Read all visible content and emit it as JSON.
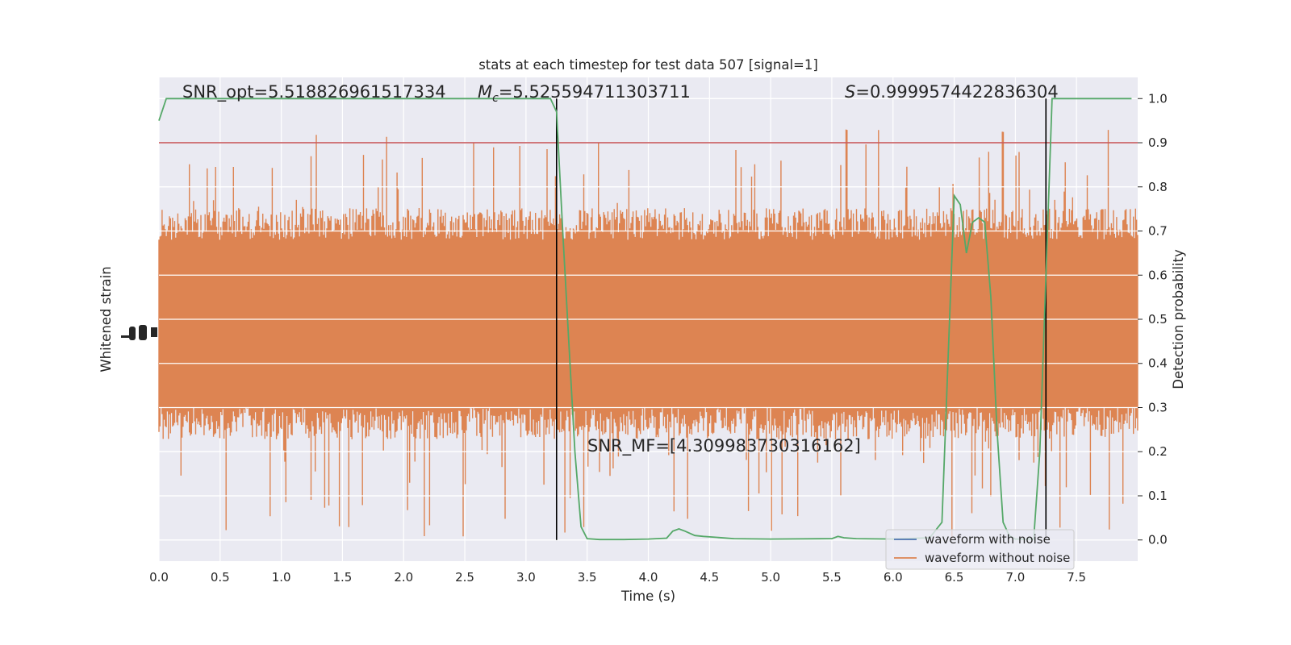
{
  "chart_data": {
    "type": "line",
    "title": "stats at each timestep for test data 507 [signal=1]",
    "xlabel": "Time (s)",
    "ylabel_left": "Whitened strain",
    "ylabel_right": "Detection probability",
    "xlim": [
      0.0,
      8.0
    ],
    "ylim_right": [
      -0.048,
      1.048
    ],
    "xticks": [
      "0.0",
      "0.5",
      "1.0",
      "1.5",
      "2.0",
      "2.5",
      "3.0",
      "3.5",
      "4.0",
      "4.5",
      "5.0",
      "5.5",
      "6.0",
      "6.5",
      "7.0",
      "7.5"
    ],
    "yticks_right": [
      "0.0",
      "0.1",
      "0.2",
      "0.3",
      "0.4",
      "0.5",
      "0.6",
      "0.7",
      "0.8",
      "0.9",
      "1.0"
    ],
    "grid": true,
    "legend_position": "lower-right",
    "annotations": {
      "snr_opt": "SNR_opt=5.518826961517334",
      "mc": "=5.525594711303711",
      "mc_symbol": "M",
      "mc_subscript": "c",
      "s_symbol": "S",
      "s_value": "=0.9999574422836304",
      "snr_mf": "SNR_MF=[4.309983730316162]"
    },
    "threshold": {
      "value": 0.9,
      "color": "#c44e52"
    },
    "vertical_lines": [
      3.25,
      7.25
    ],
    "series": [
      {
        "name": "waveform with noise",
        "color": "#4c72b0",
        "kind": "strain"
      },
      {
        "name": "waveform without noise",
        "color": "#dd8452",
        "kind": "strain_band",
        "core_upper": 0.68,
        "core_lower": 0.3,
        "peak_upper": 0.93,
        "peak_lower": 0.0
      },
      {
        "name": "detection probability",
        "color": "#55a868",
        "kind": "probability",
        "x": [
          0.0,
          0.06,
          0.5,
          1.0,
          1.5,
          2.0,
          2.5,
          3.0,
          3.2,
          3.25,
          3.3,
          3.35,
          3.4,
          3.45,
          3.5,
          3.6,
          3.8,
          4.0,
          4.15,
          4.2,
          4.25,
          4.3,
          4.38,
          4.45,
          4.55,
          4.7,
          5.0,
          5.5,
          5.55,
          5.6,
          5.7,
          6.0,
          6.3,
          6.4,
          6.5,
          6.55,
          6.6,
          6.65,
          6.7,
          6.75,
          6.8,
          6.85,
          6.9,
          6.95,
          7.0,
          7.15,
          7.2,
          7.25,
          7.3,
          7.95
        ],
        "y": [
          0.95,
          1.0,
          1.0,
          1.0,
          1.0,
          1.0,
          1.0,
          1.0,
          1.0,
          0.97,
          0.7,
          0.45,
          0.2,
          0.03,
          0.003,
          0.001,
          0.001,
          0.002,
          0.004,
          0.02,
          0.025,
          0.02,
          0.01,
          0.008,
          0.006,
          0.003,
          0.002,
          0.003,
          0.008,
          0.005,
          0.003,
          0.002,
          0.005,
          0.04,
          0.78,
          0.76,
          0.65,
          0.72,
          0.73,
          0.72,
          0.55,
          0.25,
          0.04,
          0.01,
          0.002,
          0.002,
          0.2,
          0.6,
          1.0,
          1.0
        ]
      }
    ]
  }
}
